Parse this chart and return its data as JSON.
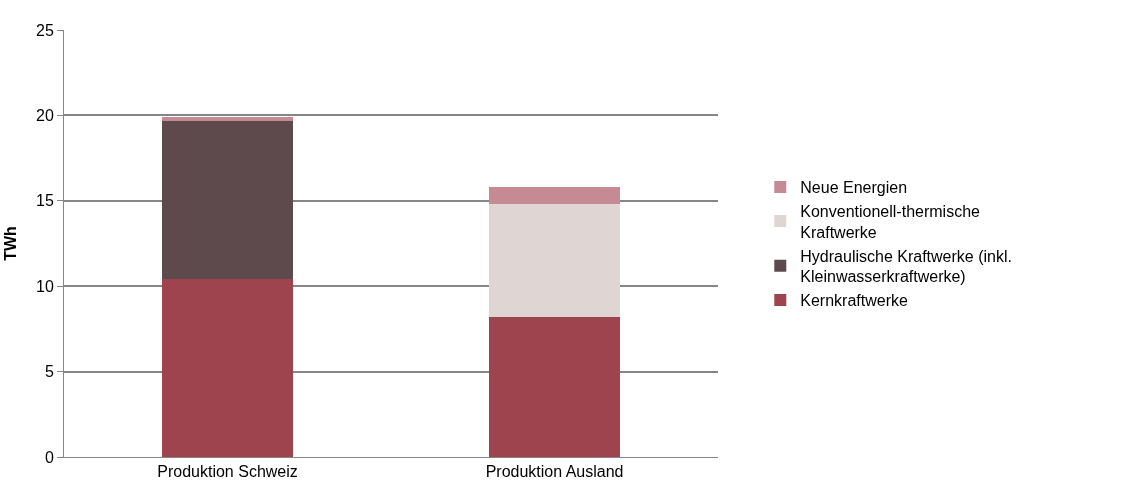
{
  "chart_data": {
    "type": "bar",
    "stacked": true,
    "ylabel": "TWh",
    "categories": [
      "Produktion Schweiz",
      "Produktion Ausland"
    ],
    "series": [
      {
        "name": "Kernkraftwerke",
        "color": "#9e444e",
        "values": [
          10.4,
          8.2
        ]
      },
      {
        "name": "Hydraulische Kraftwerke (inkl. Kleinwasserkraftwerke)",
        "color": "#5e4a4c",
        "values": [
          9.3,
          0
        ]
      },
      {
        "name": "Konventionell-thermische Kraftwerke",
        "color": "#dfd5d3",
        "values": [
          0,
          6.6
        ]
      },
      {
        "name": "Neue Energien",
        "color": "#c58a93",
        "values": [
          0.2,
          1.0
        ]
      }
    ],
    "ylim": [
      0,
      25
    ],
    "yticks": [
      0,
      5,
      10,
      15,
      20,
      25
    ],
    "grid": "y",
    "legend": "right"
  }
}
